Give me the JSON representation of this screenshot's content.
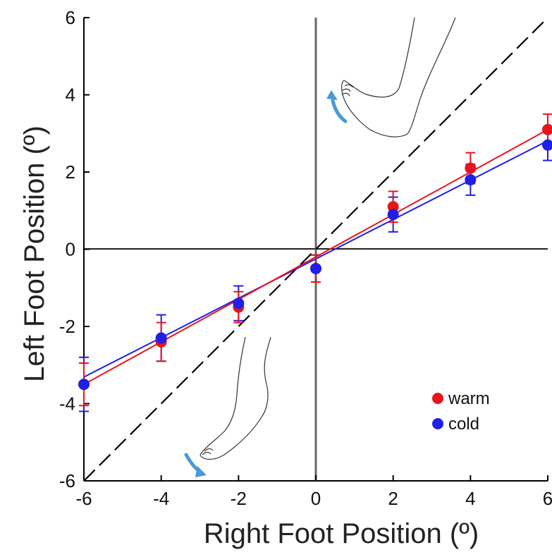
{
  "chart_data": {
    "type": "scatter",
    "title": "",
    "xlabel": "Right Foot Position (º)",
    "ylabel": "Left Foot Position (º)",
    "xlim": [
      -6,
      6
    ],
    "ylim": [
      -6,
      6
    ],
    "x_ticks": [
      "-6",
      "-4",
      "-2",
      "0",
      "2",
      "4",
      "6"
    ],
    "y_ticks": [
      "-6",
      "-4",
      "-2",
      "0",
      "2",
      "4",
      "6"
    ],
    "grid": false,
    "legend_position": "bottom-right",
    "identity_line": {
      "style": "dashed",
      "color": "#000000"
    },
    "series": [
      {
        "name": "warm",
        "color": "#e8141b",
        "x": [
          -6,
          -4,
          -2,
          0,
          2,
          4,
          6
        ],
        "y": [
          -3.5,
          -2.4,
          -1.5,
          -0.5,
          1.1,
          2.1,
          3.1
        ],
        "err": [
          0.55,
          0.5,
          0.4,
          0.35,
          0.4,
          0.4,
          0.4
        ],
        "fit": {
          "slope": 0.55,
          "intercept": -0.2
        }
      },
      {
        "name": "cold",
        "color": "#1f1fe6",
        "x": [
          -6,
          -4,
          -2,
          0,
          2,
          4,
          6
        ],
        "y": [
          -3.5,
          -2.3,
          -1.4,
          -0.5,
          0.9,
          1.8,
          2.7
        ],
        "err": [
          0.7,
          0.6,
          0.45,
          0.35,
          0.45,
          0.4,
          0.4
        ],
        "fit": {
          "slope": 0.51,
          "intercept": -0.25
        }
      }
    ]
  },
  "decorations": {
    "arrow_color": "#4a9ad8",
    "top_illustration": "foot-dorsiflexion-icon",
    "bottom_illustration": "foot-plantarflexion-icon"
  }
}
